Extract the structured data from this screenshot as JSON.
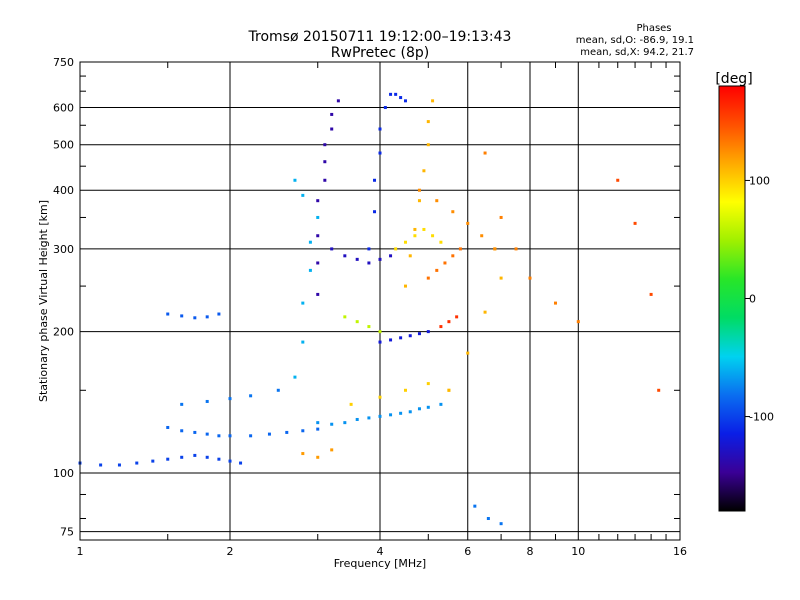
{
  "chart_data": {
    "type": "scatter",
    "title": "Tromsø 20150711 19:12:00–19:13:43",
    "subtitle": "RwPretec (8p)",
    "xlabel": "Frequency [MHz]",
    "ylabel": "Stationary phase Virtual Height [km]",
    "x_scale": "log",
    "y_scale": "log",
    "xlim": [
      1,
      16
    ],
    "ylim": [
      72,
      750
    ],
    "x_ticks": [
      1,
      2,
      4,
      6,
      8,
      10,
      16
    ],
    "y_ticks": [
      75,
      100,
      200,
      300,
      400,
      500,
      600,
      750
    ],
    "grid": true,
    "stats": {
      "heading": "Phases",
      "line_o": "mean, sd,O:  -86.9, 19.1",
      "line_x": "mean, sd,X:  94.2, 21.7"
    },
    "colorbar": {
      "label": "[deg]",
      "range": [
        -180,
        180
      ],
      "ticks": [
        100,
        0,
        -100
      ],
      "colors": [
        "#000000",
        "#3a0096",
        "#0a1ee6",
        "#0a6ef0",
        "#00d2f0",
        "#00dc64",
        "#28e628",
        "#a0f000",
        "#ffff00",
        "#ffaa00",
        "#ff5000",
        "#ff0000"
      ]
    },
    "series": [
      {
        "x": [
          1.0,
          1.1,
          1.2,
          1.3,
          1.4,
          1.5,
          1.6,
          1.7,
          1.8,
          1.9,
          2.0,
          2.1
        ],
        "y": [
          105,
          104,
          104,
          105,
          106,
          107,
          108,
          109,
          108,
          107,
          106,
          105
        ],
        "phase": -100
      },
      {
        "x": [
          1.5,
          1.6,
          1.7,
          1.8,
          1.9,
          2.0,
          2.2,
          2.4,
          2.6,
          2.8,
          3.0
        ],
        "y": [
          125,
          123,
          122,
          121,
          120,
          120,
          120,
          121,
          122,
          123,
          124
        ],
        "phase": -85
      },
      {
        "x": [
          3.0,
          3.2,
          3.4,
          3.6,
          3.8,
          4.0,
          4.2,
          4.4,
          4.6,
          4.8,
          5.0,
          5.3
        ],
        "y": [
          128,
          127,
          128,
          130,
          131,
          132,
          133,
          134,
          135,
          137,
          138,
          140
        ],
        "phase": -70
      },
      {
        "x": [
          1.5,
          1.6,
          1.7,
          1.8,
          1.9
        ],
        "y": [
          218,
          216,
          214,
          215,
          218
        ],
        "phase": -90
      },
      {
        "x": [
          1.6,
          1.8,
          2.0,
          2.2,
          2.5
        ],
        "y": [
          140,
          142,
          144,
          146,
          150
        ],
        "phase": -80
      },
      {
        "x": [
          3.0,
          3.0,
          3.0,
          3.0,
          3.1,
          3.1,
          3.1,
          3.2,
          3.2,
          3.3
        ],
        "y": [
          240,
          280,
          320,
          380,
          420,
          460,
          500,
          540,
          580,
          620
        ],
        "phase": -140
      },
      {
        "x": [
          2.7,
          2.8,
          2.8,
          2.9,
          2.9,
          3.0,
          2.8,
          2.7
        ],
        "y": [
          160,
          190,
          230,
          270,
          310,
          350,
          390,
          420
        ],
        "phase": -60
      },
      {
        "x": [
          3.8,
          3.9,
          3.9,
          4.0,
          4.0,
          4.1,
          4.2,
          4.3,
          4.4,
          4.5
        ],
        "y": [
          300,
          360,
          420,
          480,
          540,
          600,
          640,
          640,
          630,
          620
        ],
        "phase": -110
      },
      {
        "x": [
          4.5,
          4.6,
          4.7,
          4.8,
          4.9,
          5.0,
          5.0,
          5.1
        ],
        "y": [
          250,
          290,
          330,
          380,
          440,
          500,
          560,
          620
        ],
        "phase": 110
      },
      {
        "x": [
          3.2,
          3.4,
          3.6,
          3.8,
          4.0,
          4.2
        ],
        "y": [
          300,
          290,
          285,
          280,
          285,
          290
        ],
        "phase": -130
      },
      {
        "x": [
          4.0,
          4.2,
          4.4,
          4.6,
          4.8,
          5.0
        ],
        "y": [
          190,
          192,
          194,
          196,
          198,
          200
        ],
        "phase": -120
      },
      {
        "x": [
          3.4,
          3.6,
          3.8,
          4.0
        ],
        "y": [
          215,
          210,
          205,
          200
        ],
        "phase": 60
      },
      {
        "x": [
          4.3,
          4.5,
          4.7,
          4.9,
          5.1,
          5.3
        ],
        "y": [
          300,
          310,
          320,
          330,
          320,
          310
        ],
        "phase": 95
      },
      {
        "x": [
          5.0,
          5.2,
          5.4,
          5.6,
          5.8
        ],
        "y": [
          260,
          270,
          280,
          290,
          300
        ],
        "phase": 135
      },
      {
        "x": [
          5.3,
          5.5,
          5.7
        ],
        "y": [
          205,
          210,
          215
        ],
        "phase": 160
      },
      {
        "x": [
          3.5,
          4.0,
          4.5,
          5.0,
          5.5
        ],
        "y": [
          140,
          145,
          150,
          155,
          150
        ],
        "phase": 100
      },
      {
        "x": [
          5.5,
          6.0,
          6.5,
          7.0,
          6.8
        ],
        "y": [
          150,
          180,
          220,
          260,
          300
        ],
        "phase": 110
      },
      {
        "x": [
          6.5,
          7.0,
          7.5,
          8.0,
          9.0,
          10.0
        ],
        "y": [
          480,
          350,
          300,
          260,
          230,
          210
        ],
        "phase": 130
      },
      {
        "x": [
          4.8,
          5.2,
          5.6,
          6.0,
          6.4,
          6.8
        ],
        "y": [
          400,
          380,
          360,
          340,
          320,
          300
        ],
        "phase": 125
      },
      {
        "x": [
          12.0,
          13.0,
          14.0,
          14.5
        ],
        "y": [
          420,
          340,
          240,
          150
        ],
        "phase": 150
      },
      {
        "x": [
          6.2,
          6.6,
          7.0
        ],
        "y": [
          85,
          80,
          78
        ],
        "phase": -80
      },
      {
        "x": [
          2.8,
          3.0,
          3.2
        ],
        "y": [
          110,
          108,
          112
        ],
        "phase": 120
      }
    ]
  }
}
